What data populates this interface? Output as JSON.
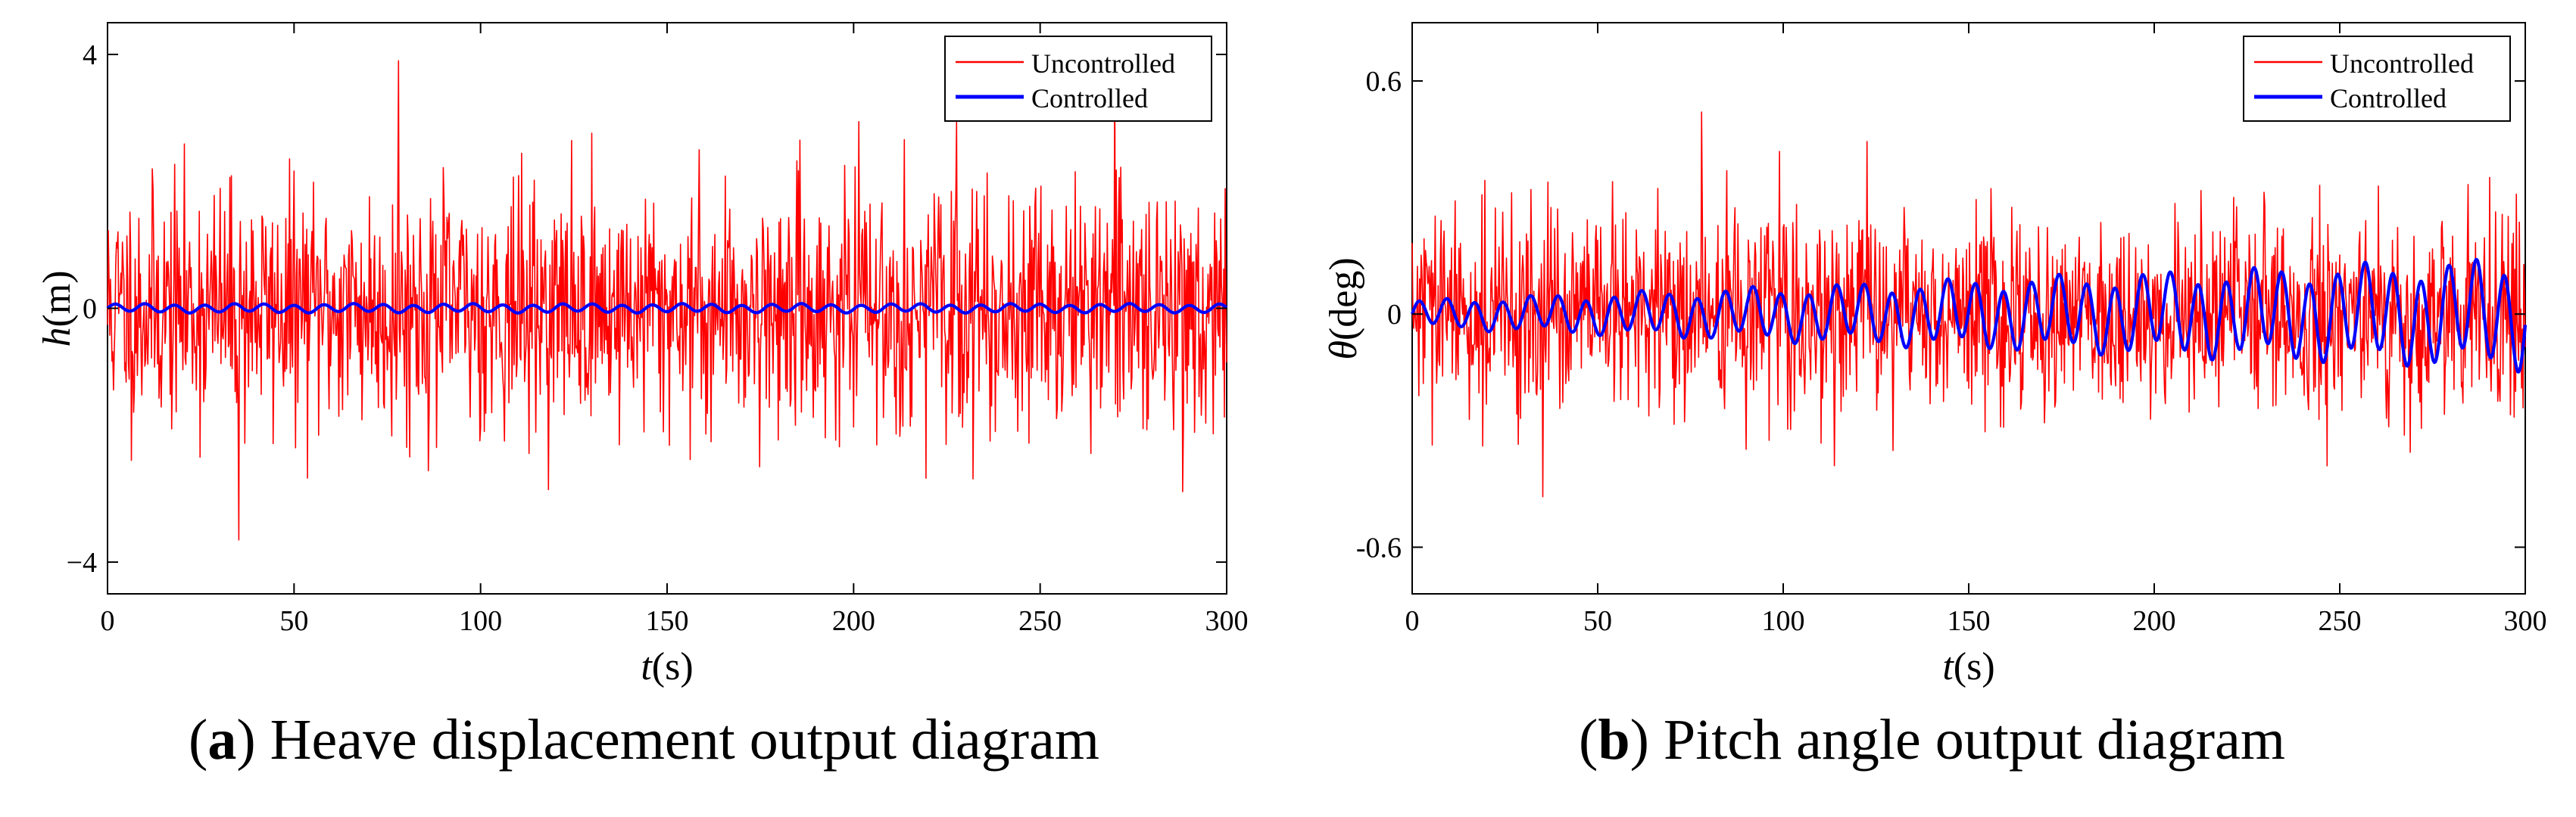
{
  "colors": {
    "uncontrolled": "#ff0000",
    "controlled": "#0000ff",
    "axis": "#000000",
    "background": "#ffffff"
  },
  "panels": {
    "a": {
      "caption_letter": "a",
      "caption_text": "Heave displacement output diagram"
    },
    "b": {
      "caption_letter": "b",
      "caption_text": "Pitch angle output diagram"
    }
  },
  "chart_data": [
    {
      "type": "line",
      "title": "",
      "xlabel_var": "t",
      "xlabel_unit": "(s)",
      "ylabel_var": "h",
      "ylabel_unit": "(m)",
      "xlim": [
        0,
        300
      ],
      "ylim": [
        -4.5,
        4.5
      ],
      "xticks": [
        0,
        50,
        100,
        150,
        200,
        250,
        300
      ],
      "xtick_labels": [
        "0",
        "50",
        "100",
        "150",
        "200",
        "250",
        "300"
      ],
      "yticks": [
        -4,
        0,
        4
      ],
      "ytick_labels": [
        "−4",
        "0",
        "4"
      ],
      "legend_position": "top-right",
      "series": [
        {
          "name": "Uncontrolled",
          "kind": "noise",
          "sigma": 0.95,
          "peak_max": 3.9,
          "peak_min": -3.65,
          "samples": 1500,
          "seed": 11
        },
        {
          "name": "Controlled",
          "kind": "oscillation",
          "amplitude": 0.06,
          "period_s": 8,
          "samples": 900
        }
      ]
    },
    {
      "type": "line",
      "title": "",
      "xlabel_var": "t",
      "xlabel_unit": "(s)",
      "ylabel_var": "θ",
      "ylabel_unit": "(deg)",
      "xlim": [
        0,
        300
      ],
      "ylim": [
        -0.72,
        0.75
      ],
      "xticks": [
        0,
        50,
        100,
        150,
        200,
        250,
        300
      ],
      "xtick_labels": [
        "0",
        "50",
        "100",
        "150",
        "200",
        "250",
        "300"
      ],
      "yticks": [
        -0.6,
        0,
        0.6
      ],
      "ytick_labels": [
        "-0.6",
        "0",
        "0.6"
      ],
      "legend_position": "top-right",
      "series": [
        {
          "name": "Uncontrolled",
          "kind": "noise",
          "sigma": 0.13,
          "peak_max": 0.52,
          "peak_min": -0.47,
          "samples": 1500,
          "seed": 29
        },
        {
          "name": "Controlled",
          "kind": "growing-oscillation",
          "amplitude_start": 0.03,
          "amplitude_end": 0.12,
          "period_s": 7.5,
          "samples": 1200
        }
      ]
    }
  ]
}
